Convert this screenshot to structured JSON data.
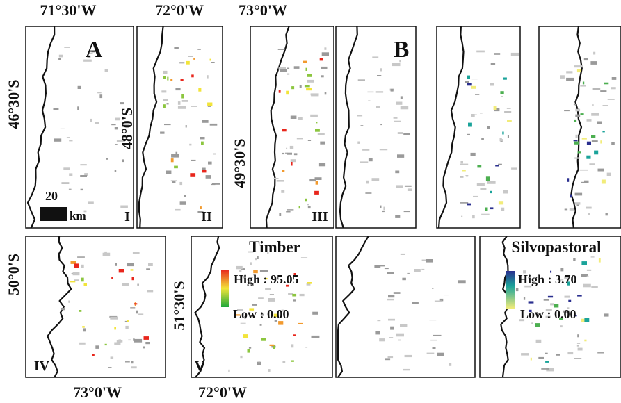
{
  "top_axis_labels": [
    "71°30'W",
    "72°0'W",
    "73°0'W"
  ],
  "left_axis_labels": [
    "46°30'S",
    "48°0'S",
    "49°30'S",
    "50°0'S",
    "51°30'S"
  ],
  "bottom_axis_labels": [
    "73°0'W",
    "72°0'W"
  ],
  "scale_bar": {
    "value": 20,
    "unit": "km"
  },
  "subpanels": [
    "I",
    "II",
    "III",
    "IV",
    "V"
  ],
  "panels": [
    {
      "letter": "A",
      "legend": {
        "title": "Timber",
        "high": "High : 95.05",
        "low": "Low : 0.00"
      }
    },
    {
      "letter": "B",
      "legend": {
        "title": "Silvopastoral",
        "high": "High : 3.70",
        "low": "Low : 0.00"
      }
    }
  ]
}
